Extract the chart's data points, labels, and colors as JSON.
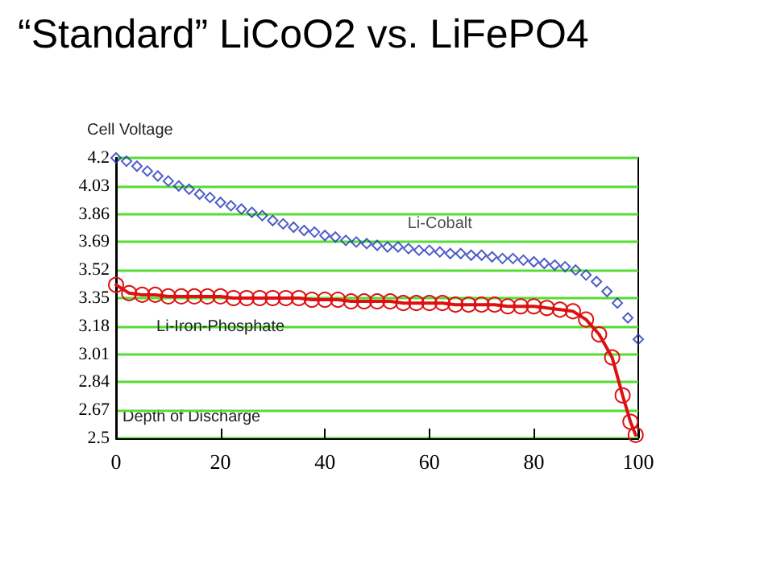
{
  "chart_data": {
    "type": "scatter",
    "title": "“Standard” LiCoO2 vs. LiFePO4",
    "xlabel": "Depth of Discharge",
    "ylabel": "Cell Voltage",
    "xlim": [
      0,
      100
    ],
    "xticks": [
      0,
      20,
      40,
      60,
      80,
      100
    ],
    "ylim": [
      2.5,
      4.2
    ],
    "yticks": [
      2.5,
      2.67,
      2.84,
      3.01,
      3.18,
      3.35,
      3.52,
      3.69,
      3.86,
      4.03,
      4.2
    ],
    "grid": "y",
    "series": [
      {
        "name": "Li-Cobalt",
        "marker": "diamond",
        "color": "#2233bb",
        "x": [
          0,
          2,
          4,
          6,
          8,
          10,
          12,
          14,
          16,
          18,
          20,
          22,
          24,
          26,
          28,
          30,
          32,
          34,
          36,
          38,
          40,
          42,
          44,
          46,
          48,
          50,
          52,
          54,
          56,
          58,
          60,
          62,
          64,
          66,
          68,
          70,
          72,
          74,
          76,
          78,
          80,
          82,
          84,
          86,
          88,
          90,
          92,
          94,
          96,
          98,
          100
        ],
        "values": [
          4.2,
          4.18,
          4.15,
          4.12,
          4.09,
          4.06,
          4.03,
          4.01,
          3.98,
          3.96,
          3.93,
          3.91,
          3.89,
          3.87,
          3.85,
          3.82,
          3.8,
          3.78,
          3.76,
          3.75,
          3.73,
          3.72,
          3.7,
          3.69,
          3.68,
          3.67,
          3.66,
          3.66,
          3.65,
          3.64,
          3.64,
          3.63,
          3.62,
          3.62,
          3.61,
          3.61,
          3.6,
          3.59,
          3.59,
          3.58,
          3.57,
          3.56,
          3.55,
          3.54,
          3.52,
          3.49,
          3.45,
          3.39,
          3.32,
          3.23,
          3.1
        ]
      },
      {
        "name": "Li-Iron-Phosphate",
        "type": "line",
        "marker": "circle",
        "color": "#dd1111",
        "x": [
          0,
          2.5,
          5,
          7.5,
          10,
          12.5,
          15,
          17.5,
          20,
          22.5,
          25,
          27.5,
          30,
          32.5,
          35,
          37.5,
          40,
          42.5,
          45,
          47.5,
          50,
          52.5,
          55,
          57.5,
          60,
          62.5,
          65,
          67.5,
          70,
          72.5,
          75,
          77.5,
          80,
          82.5,
          85,
          87.5,
          90,
          92.5,
          95,
          97,
          98.5,
          99.5
        ],
        "values": [
          3.43,
          3.38,
          3.37,
          3.37,
          3.36,
          3.36,
          3.36,
          3.36,
          3.36,
          3.35,
          3.35,
          3.35,
          3.35,
          3.35,
          3.35,
          3.34,
          3.34,
          3.34,
          3.33,
          3.33,
          3.33,
          3.33,
          3.32,
          3.32,
          3.32,
          3.32,
          3.31,
          3.31,
          3.31,
          3.31,
          3.3,
          3.3,
          3.3,
          3.29,
          3.28,
          3.27,
          3.22,
          3.13,
          2.99,
          2.76,
          2.6,
          2.52
        ]
      }
    ]
  }
}
